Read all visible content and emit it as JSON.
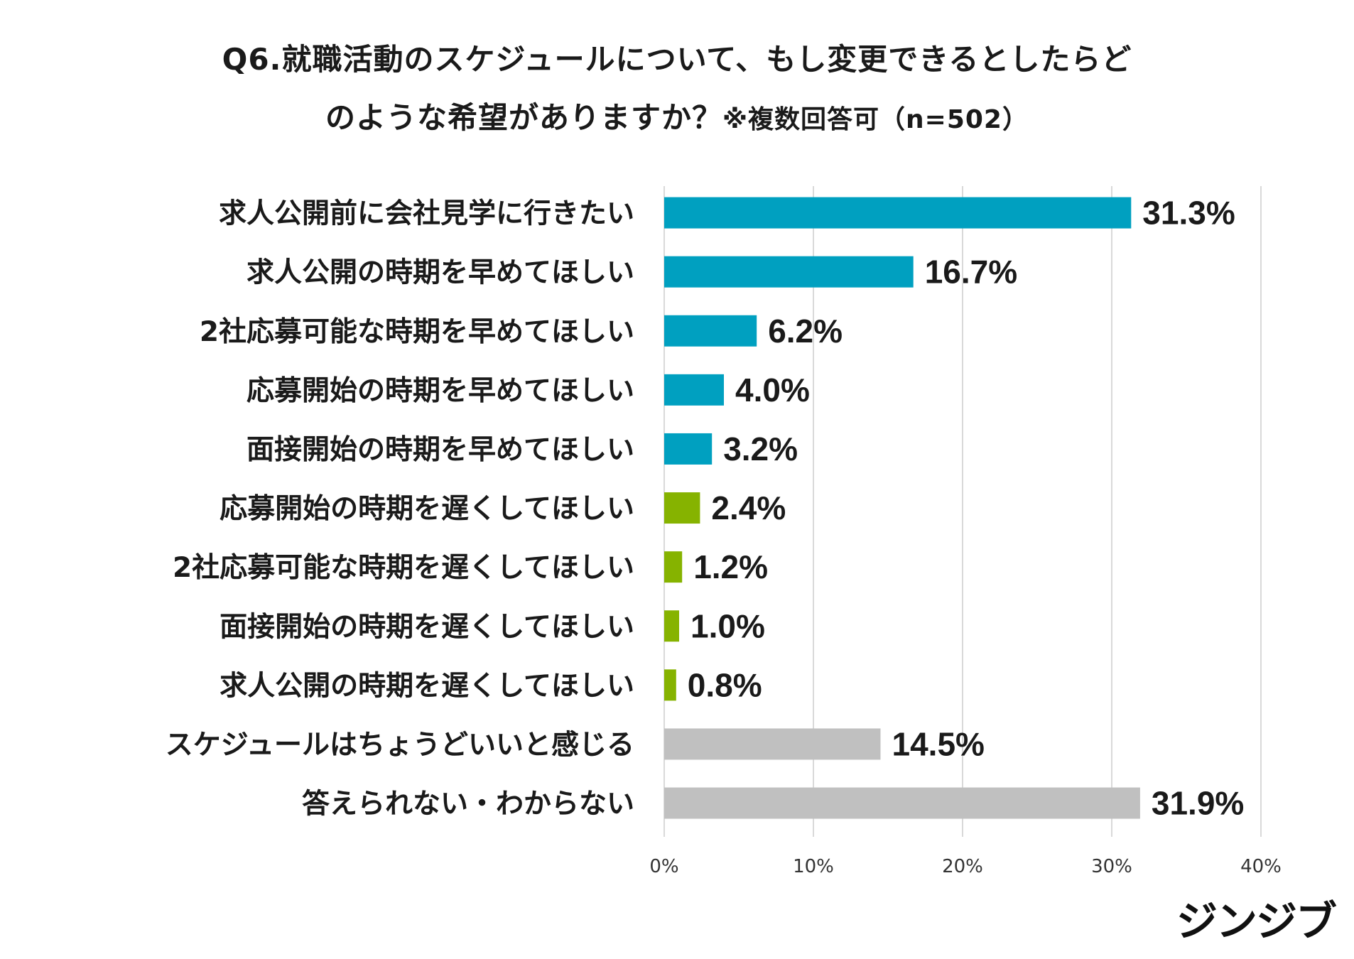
{
  "title": {
    "line1": "Q6.就職活動のスケジュールについて、もし変更できるとしたらど",
    "line2": "のような希望がありますか？",
    "note": "※複数回答可（n=502）"
  },
  "brand": "ジンジブ",
  "colors": {
    "blue": "#00a0c0",
    "green": "#86b300",
    "gray": "#c0c0c0",
    "grid": "#d9d9d9"
  },
  "chart_data": {
    "type": "bar",
    "orientation": "horizontal",
    "categories": [
      "求人公開前に会社見学に行きたい",
      "求人公開の時期を早めてほしい",
      "2社応募可能な時期を早めてほしい",
      "応募開始の時期を早めてほしい",
      "面接開始の時期を早めてほしい",
      "応募開始の時期を遅くしてほしい",
      "2社応募可能な時期を遅くしてほしい",
      "面接開始の時期を遅くしてほしい",
      "求人公開の時期を遅くしてほしい",
      "スケジュールはちょうどいいと感じる",
      "答えられない・わからない"
    ],
    "values": [
      31.3,
      16.7,
      6.2,
      4.0,
      3.2,
      2.4,
      1.2,
      1.0,
      0.8,
      14.5,
      31.9
    ],
    "value_labels": [
      "31.3%",
      "16.7%",
      "6.2%",
      "4.0%",
      "3.2%",
      "2.4%",
      "1.2%",
      "1.0%",
      "0.8%",
      "14.5%",
      "31.9%"
    ],
    "bar_colors": [
      "blue",
      "blue",
      "blue",
      "blue",
      "blue",
      "green",
      "green",
      "green",
      "green",
      "gray",
      "gray"
    ],
    "xlim": [
      0,
      40
    ],
    "xticks": [
      0,
      10,
      20,
      30,
      40
    ],
    "xtick_labels": [
      "0%",
      "10%",
      "20%",
      "30%",
      "40%"
    ],
    "grid": true,
    "legend": "none"
  }
}
